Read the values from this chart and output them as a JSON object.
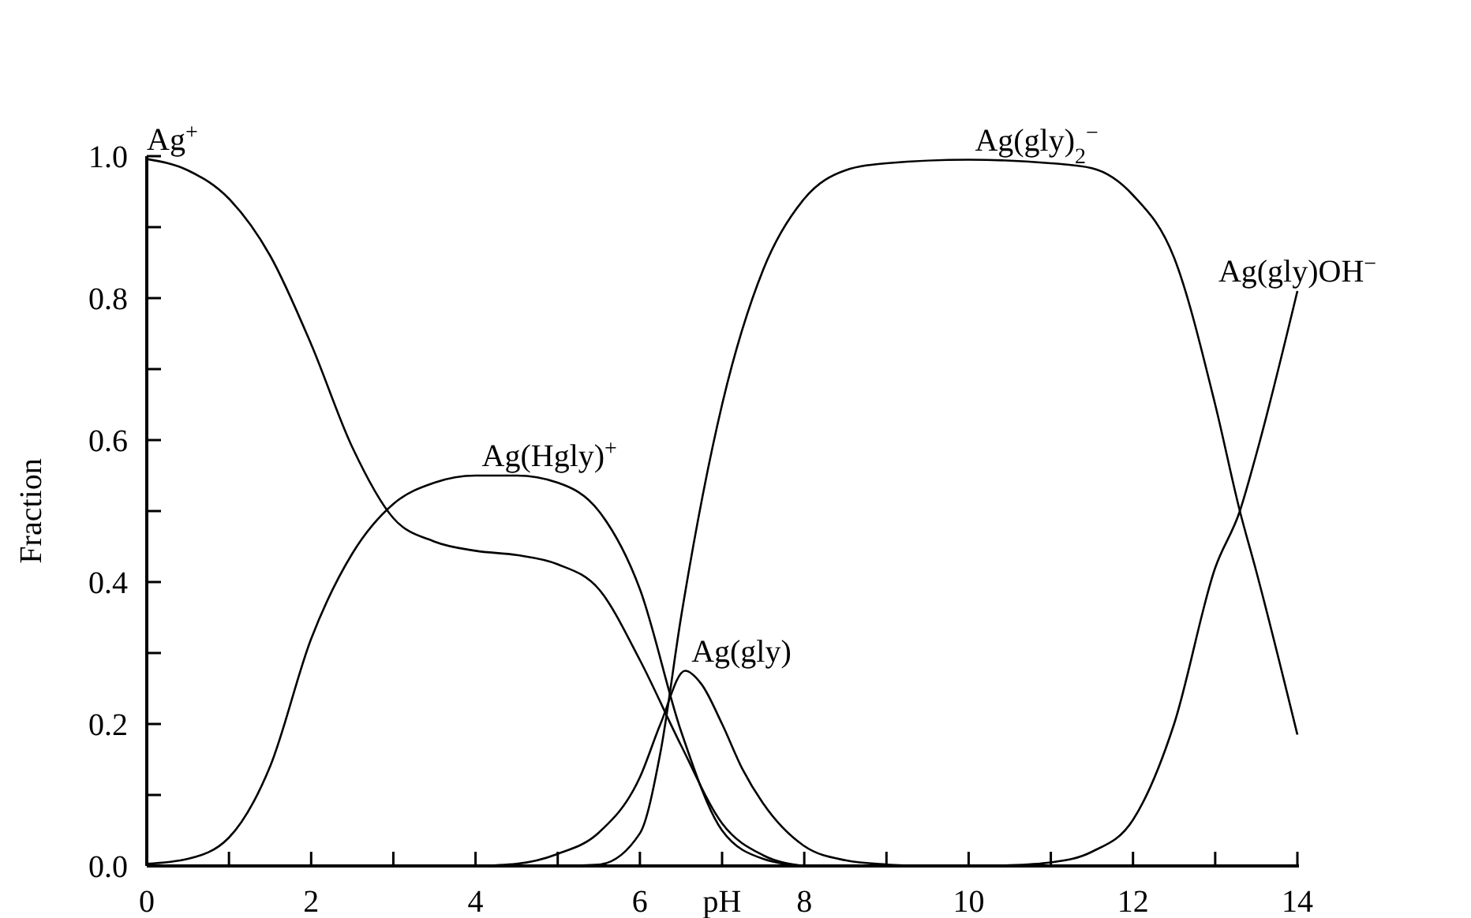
{
  "chart_data": {
    "type": "line",
    "xlabel": "pH",
    "ylabel": "Fraction",
    "xlim": [
      0,
      14
    ],
    "ylim": [
      0,
      1
    ],
    "xticks": [
      0,
      {
        "value": 1,
        "label": null
      },
      2,
      {
        "value": 3,
        "label": null
      },
      4,
      {
        "value": 5,
        "label": null
      },
      6,
      {
        "value": 7,
        "label": null
      },
      8,
      {
        "value": 9,
        "label": null
      },
      10,
      {
        "value": 11,
        "label": null
      },
      12,
      {
        "value": 13,
        "label": null
      },
      14
    ],
    "yticks": [
      {
        "value": 0,
        "label": "0.0"
      },
      {
        "value": 0.1,
        "label": null
      },
      {
        "value": 0.2,
        "label": "0.2"
      },
      {
        "value": 0.3,
        "label": null
      },
      {
        "value": 0.4,
        "label": "0.4"
      },
      {
        "value": 0.5,
        "label": null
      },
      {
        "value": 0.6,
        "label": "0.6"
      },
      {
        "value": 0.7,
        "label": null
      },
      {
        "value": 0.8,
        "label": "0.8"
      },
      {
        "value": 0.9,
        "label": null
      },
      {
        "value": 1,
        "label": "1.0"
      }
    ],
    "grid": false,
    "marker": "none",
    "line_style": "solid",
    "series": [
      {
        "name": "Ag$^{+}$",
        "color": "#000000",
        "x": [
          0,
          0.5,
          1,
          1.5,
          2,
          2.5,
          3,
          3.5,
          4,
          4.5,
          5,
          5.5,
          6,
          6.5,
          7,
          7.5,
          8
        ],
        "values": [
          0.996,
          0.98,
          0.94,
          0.86,
          0.735,
          0.59,
          0.49,
          0.457,
          0.444,
          0.438,
          0.425,
          0.39,
          0.29,
          0.17,
          0.06,
          0.015,
          0
        ]
      },
      {
        "name": "Ag(Hgly)$^{+}$",
        "color": "#000000",
        "x": [
          0,
          0.5,
          1,
          1.5,
          2,
          2.5,
          3,
          3.5,
          4,
          4.5,
          5,
          5.5,
          6,
          6.5,
          7,
          7.5,
          8
        ],
        "values": [
          0.003,
          0.01,
          0.04,
          0.14,
          0.32,
          0.44,
          0.51,
          0.54,
          0.55,
          0.55,
          0.54,
          0.5,
          0.39,
          0.19,
          0.05,
          0.01,
          0
        ]
      },
      {
        "name": "Ag(gly)",
        "color": "#000000",
        "x": [
          4,
          4.5,
          5,
          5.5,
          6,
          6.25,
          6.55,
          6.75,
          7,
          7.25,
          7.5,
          8,
          8.5,
          9,
          9.5
        ],
        "values": [
          0,
          0.003,
          0.017,
          0.047,
          0.125,
          0.2,
          0.275,
          0.256,
          0.2,
          0.136,
          0.088,
          0.028,
          0.008,
          0.002,
          0
        ]
      },
      {
        "name": "Ag(gly)$_{2}$$^{−}$",
        "color": "#000000",
        "x": [
          5,
          5.5,
          6,
          6.25,
          6.5,
          7,
          7.5,
          8,
          8.5,
          9,
          10,
          11,
          11.5,
          12,
          12.5,
          13,
          13.3,
          13.5,
          14
        ],
        "values": [
          0,
          0.002,
          0.046,
          0.16,
          0.35,
          0.65,
          0.84,
          0.94,
          0.98,
          0.99,
          0.995,
          0.99,
          0.983,
          0.945,
          0.857,
          0.65,
          0.5,
          0.415,
          0.185
        ]
      },
      {
        "name": "Ag(gly)OH$^{−}$",
        "color": "#000000",
        "x": [
          10,
          10.5,
          11,
          11.5,
          12,
          12.5,
          13,
          13.3,
          13.5,
          14
        ],
        "values": [
          0,
          0.001,
          0.005,
          0.02,
          0.065,
          0.2,
          0.42,
          0.5,
          0.58,
          0.81
        ]
      }
    ]
  }
}
